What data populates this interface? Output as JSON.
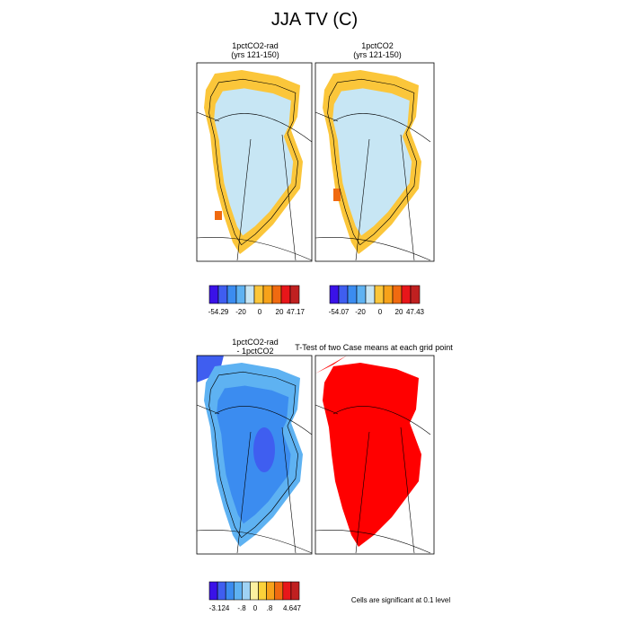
{
  "title": "JJA TV (C)",
  "panels": [
    {
      "title": [
        "1pctCO2-rad",
        "(yrs 121-150)"
      ]
    },
    {
      "title": [
        "1pctCO2",
        "(yrs 121-150)"
      ]
    },
    {
      "title": [
        "1pctCO2-rad",
        "- 1pctCO2"
      ]
    },
    {
      "title": [
        "T-Test of two Case means at each grid point"
      ]
    }
  ],
  "colorbars": [
    {
      "colors": [
        "#3a12e8",
        "#3f5ef0",
        "#3b8cf0",
        "#5eb2f2",
        "#c7e6f4",
        "#fbc63a",
        "#f7a21a",
        "#f06a10",
        "#e8161a",
        "#c02020"
      ],
      "labels": [
        "-54.29",
        "-20",
        "0",
        "20",
        "47.17"
      ]
    },
    {
      "colors": [
        "#3a12e8",
        "#3f5ef0",
        "#3b8cf0",
        "#5eb2f2",
        "#c7e6f4",
        "#fbc63a",
        "#f7a21a",
        "#f06a10",
        "#e8161a",
        "#c02020"
      ],
      "labels": [
        "-54.07",
        "-20",
        "0",
        "20",
        "47.43"
      ]
    },
    {
      "colors": [
        "#3a12e8",
        "#3f5ef0",
        "#3b8cf0",
        "#5eb2f2",
        "#9fd2f4",
        "#fbf0a0",
        "#fbd23a",
        "#f7a21a",
        "#f06a10",
        "#e8161a",
        "#c02020"
      ],
      "labels": [
        "-3.124",
        "-.8",
        "0",
        ".8",
        "4.647"
      ]
    }
  ],
  "note": "Cells are significant at 0.1 level"
}
